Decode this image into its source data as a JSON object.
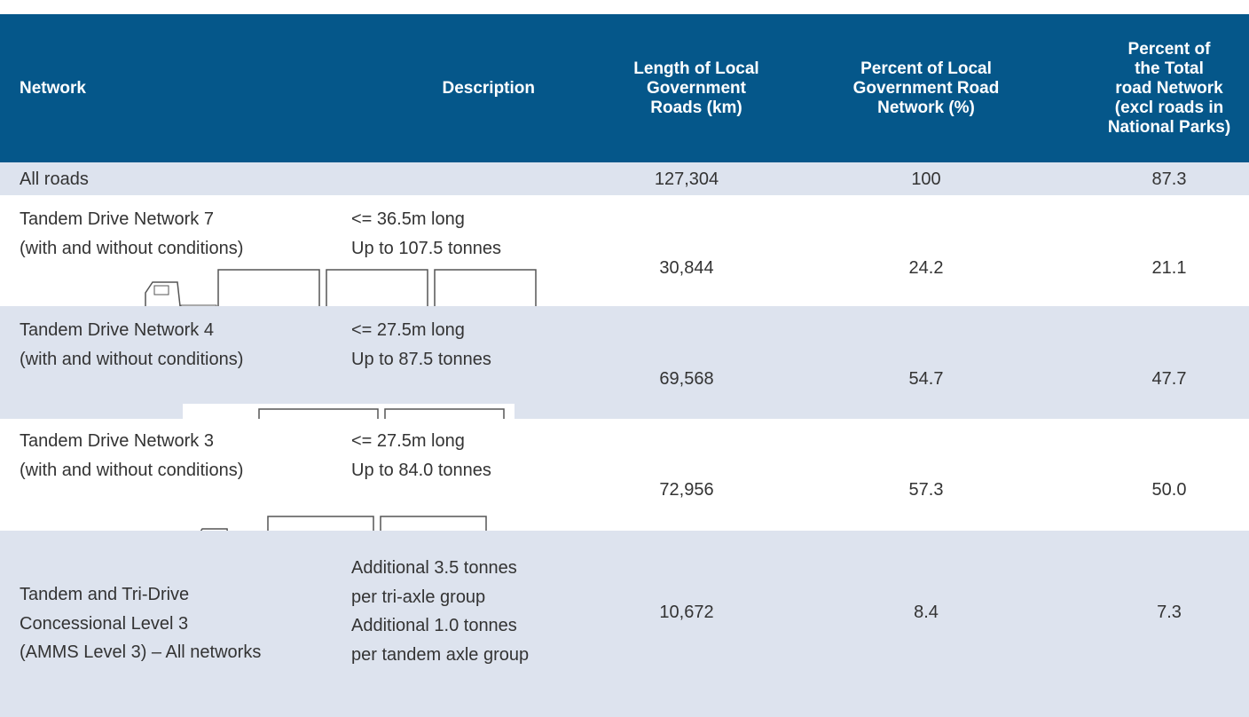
{
  "table": {
    "header": [
      [
        "Network"
      ],
      [
        "Description"
      ],
      [
        "Length of Local",
        "Government",
        "Roads (km)"
      ],
      [
        "Percent of Local",
        "Government Road",
        "Network (%)"
      ],
      [
        "Percent of",
        "the Total",
        "road Network",
        "(excl roads in",
        "National Parks)"
      ]
    ],
    "rows": [
      {
        "network": [
          "All roads"
        ],
        "description": [],
        "length": "127,304",
        "percent_lg": "100",
        "percent_total": "87.3"
      },
      {
        "network": [
          "Tandem Drive Network 7",
          "(with and without conditions)"
        ],
        "description": [
          "<= 36.5m long",
          "Up to 107.5 tonnes"
        ],
        "length": "30,844",
        "percent_lg": "24.2",
        "percent_total": "21.1"
      },
      {
        "network": [
          "Tandem Drive Network 4",
          "(with and without conditions)"
        ],
        "description": [
          "<= 27.5m long",
          "Up to 87.5 tonnes"
        ],
        "length": "69,568",
        "percent_lg": "54.7",
        "percent_total": "47.7"
      },
      {
        "network": [
          "Tandem Drive Network 3",
          "(with and without conditions)"
        ],
        "description": [
          "<= 27.5m long",
          "Up to 84.0 tonnes"
        ],
        "length": "72,956",
        "percent_lg": "57.3",
        "percent_total": "50.0"
      },
      {
        "network": [
          "Tandem and Tri-Drive",
          "Concessional Level 3",
          "(AMMS Level 3) – All networks"
        ],
        "description": [
          "Additional 3.5 tonnes",
          "per tri-axle group",
          "Additional 1.0 tonnes",
          "per tandem axle group"
        ],
        "length": "10,672",
        "percent_lg": "8.4",
        "percent_total": "7.3"
      }
    ]
  }
}
